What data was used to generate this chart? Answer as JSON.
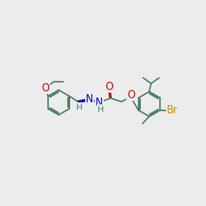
{
  "bg_color": "#ececec",
  "bond_color": "#4a7a6a",
  "bond_width": 1.5,
  "atom_colors": {
    "O": "#cc0000",
    "N": "#0000cc",
    "Br": "#cc8800",
    "H": "#4a7a6a"
  },
  "font_size_atom": 10.5,
  "font_size_h": 9.0,
  "font_size_br": 10.5
}
